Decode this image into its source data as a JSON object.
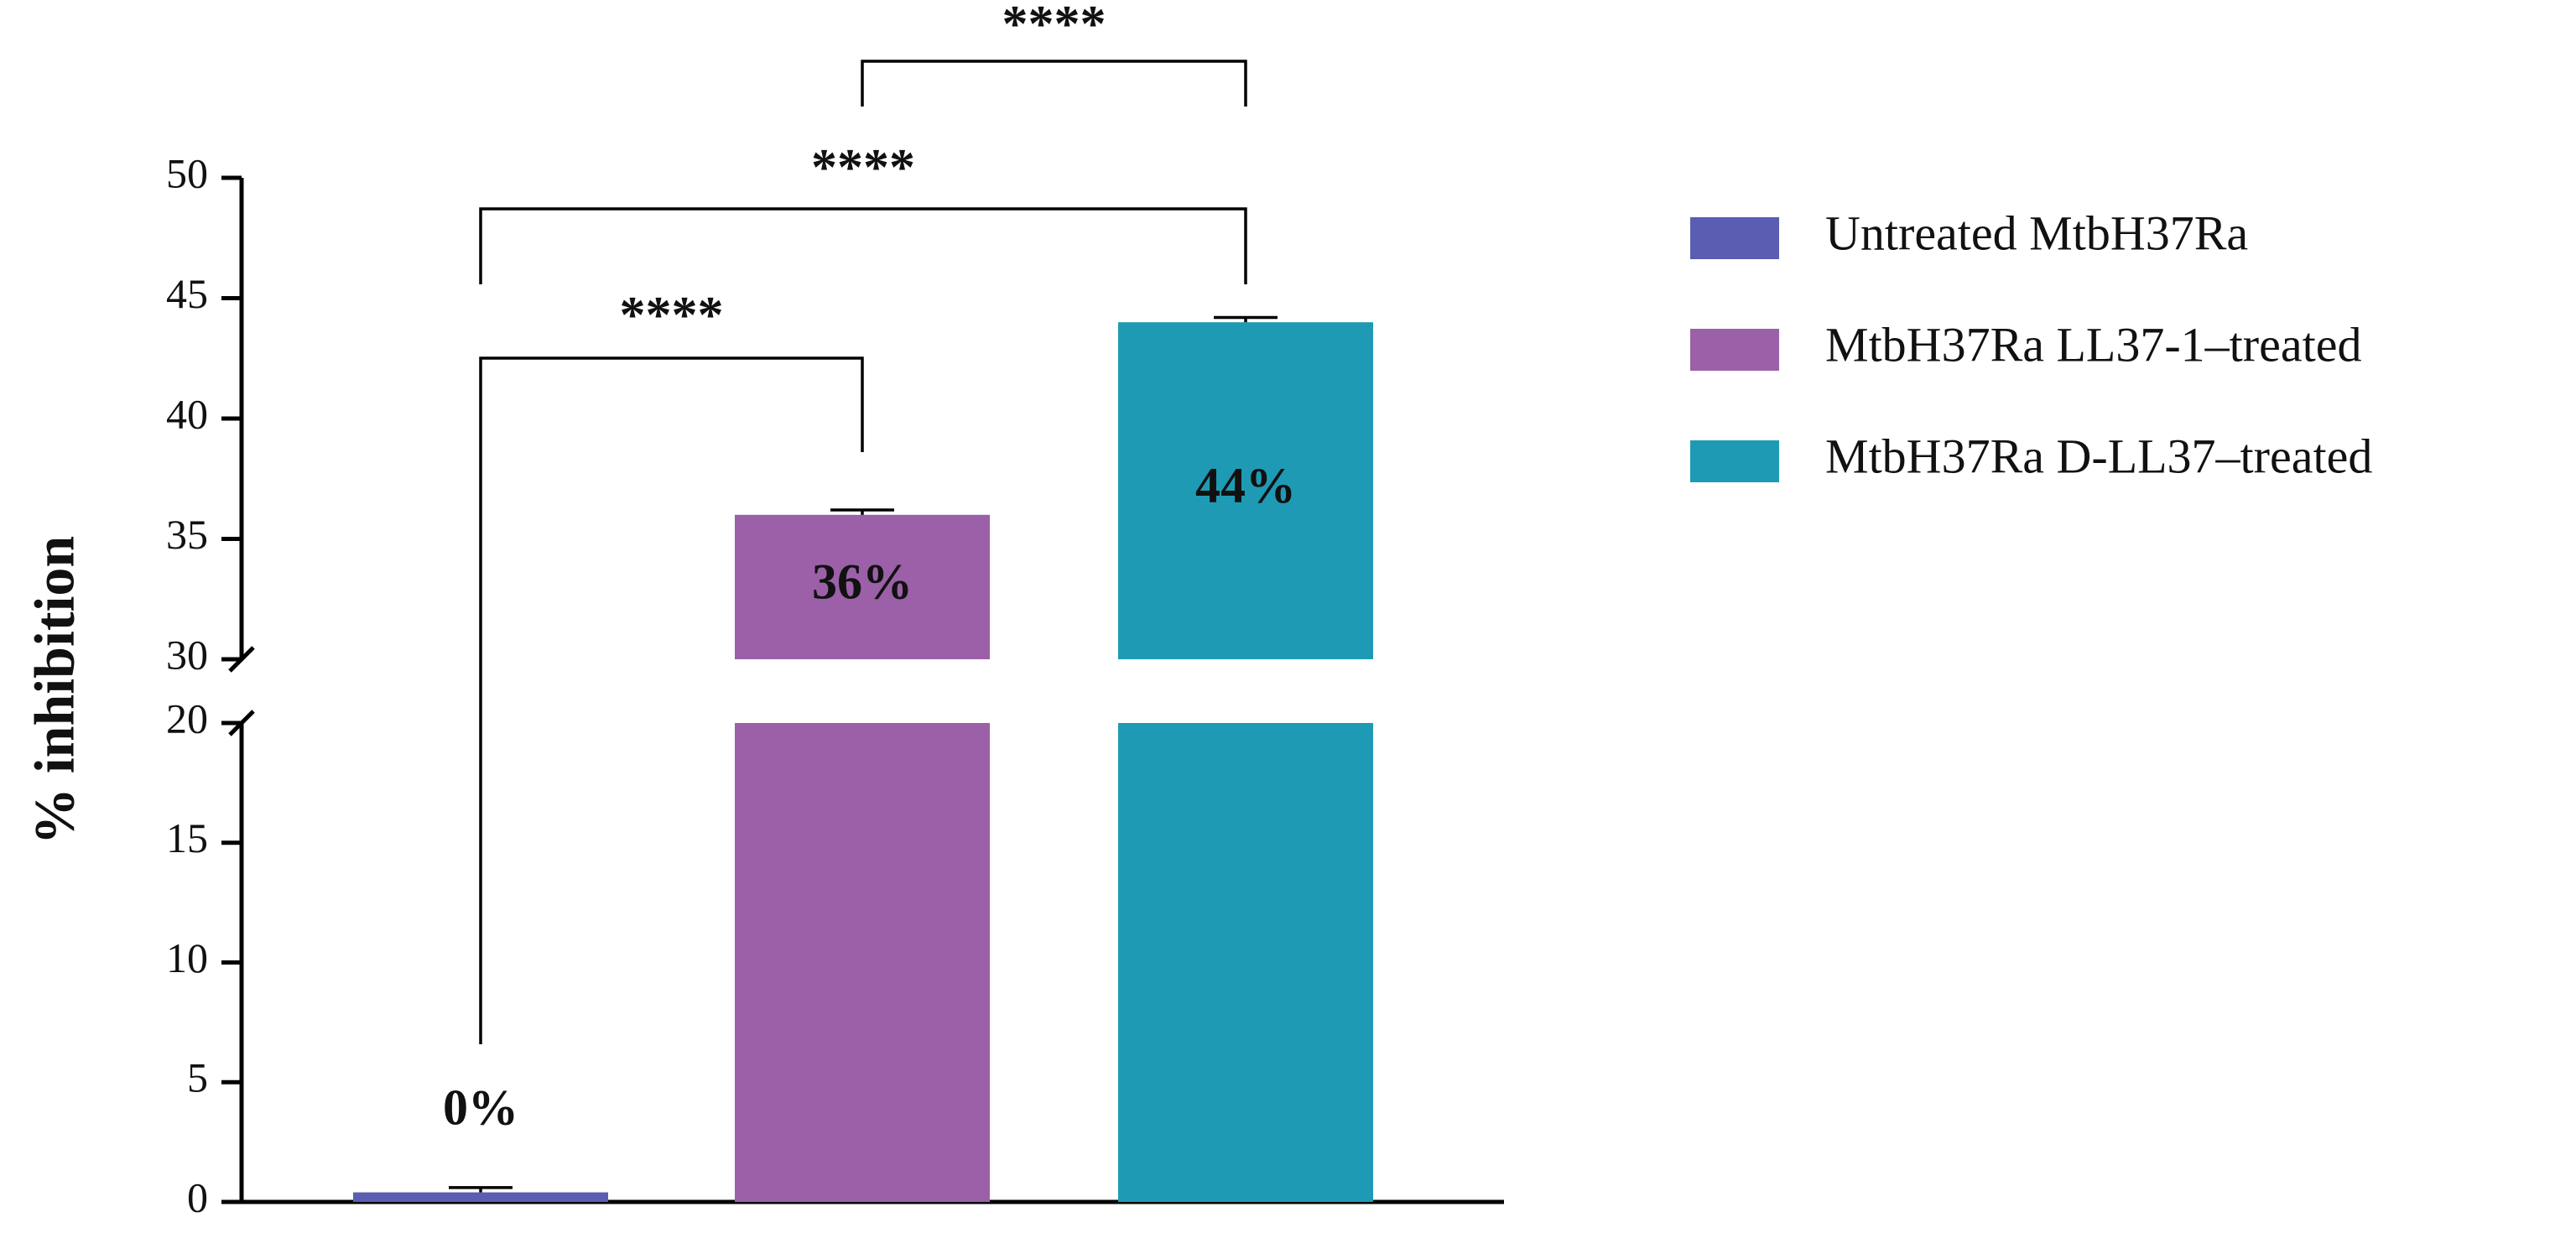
{
  "chart_data": {
    "type": "bar",
    "y_label": "% inhibition",
    "categories": [
      "Untreated MtbH37Ra",
      "MtbH37Ra LL37-1–treated",
      "MtbH37Ra D-LL37–treated"
    ],
    "colors": [
      "#5a5db2",
      "#9b60a7",
      "#1f9ab4"
    ],
    "values": [
      0.4,
      36,
      44
    ],
    "errors": [
      0.2,
      0.2,
      0.2
    ],
    "value_labels": [
      "0%",
      "36%",
      "44%"
    ],
    "y_segments": [
      {
        "ylim": [
          0,
          20
        ],
        "yticks": [
          0,
          5,
          10,
          15,
          20
        ]
      },
      {
        "ylim": [
          30,
          50
        ],
        "yticks": [
          30,
          35,
          40,
          45,
          50
        ]
      }
    ],
    "annotations": [
      {
        "text": "****",
        "from": 0,
        "to": 1
      },
      {
        "text": "****",
        "from": 0,
        "to": 2
      },
      {
        "text": "****",
        "from": 1,
        "to": 2
      }
    ]
  }
}
